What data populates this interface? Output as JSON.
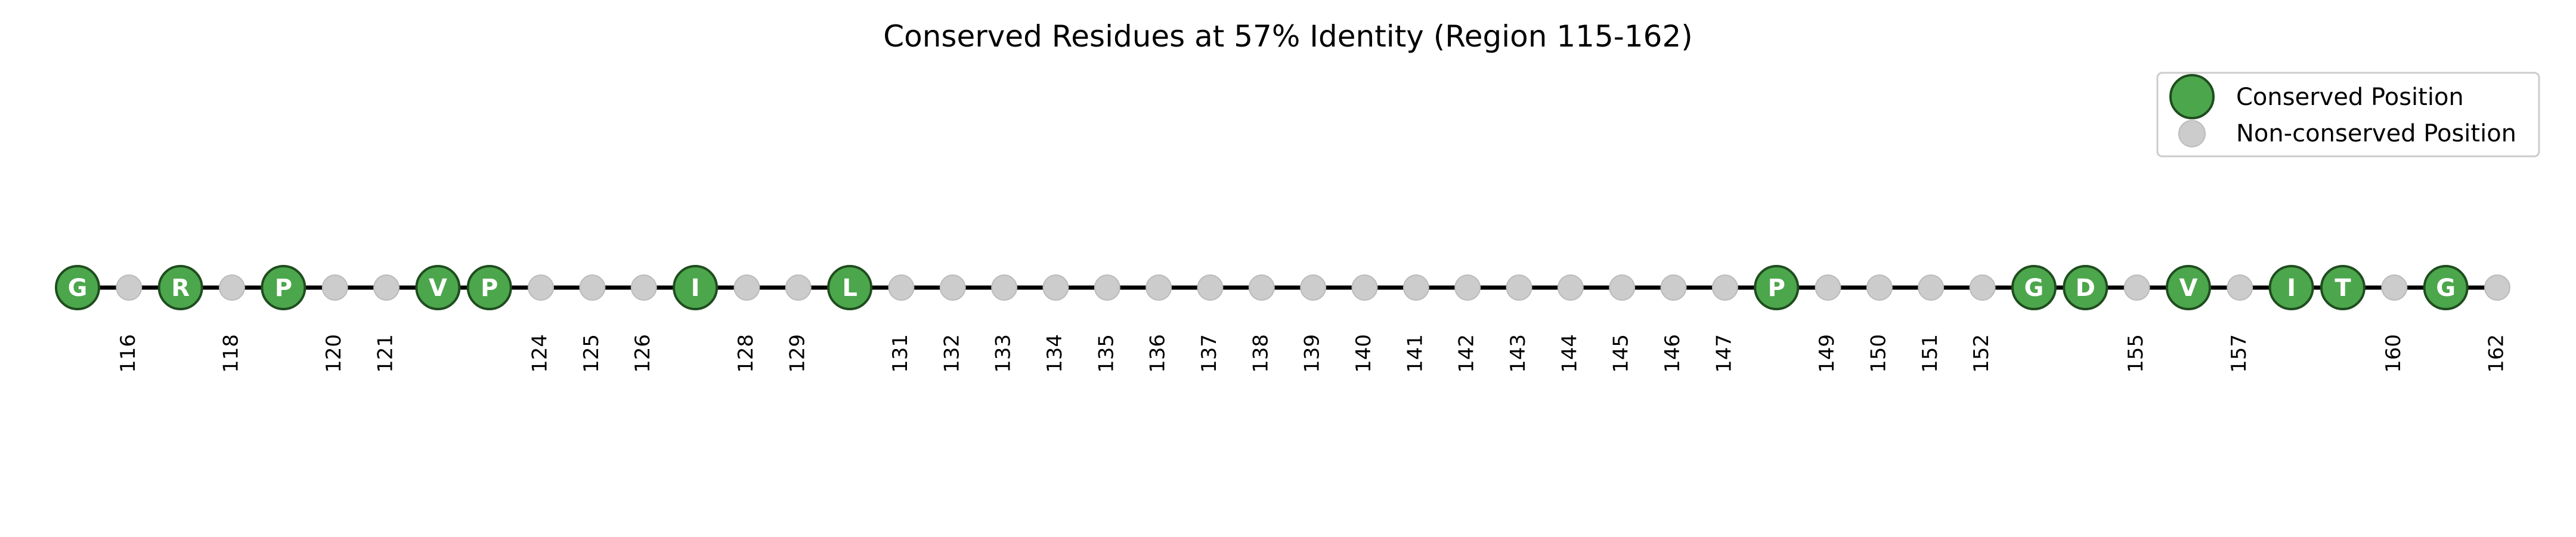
{
  "chart_data": {
    "type": "scatter",
    "title": "Conserved Residues at 57% Identity (Region 115-162)",
    "xlabel": "",
    "ylabel": "",
    "xlim": [
      115,
      162
    ],
    "grid": false,
    "legend_position": "top-right",
    "colors": {
      "conserved_fill": "#4ca64c",
      "conserved_edge": "#1f4d1f",
      "nonconserved_fill": "#cccccc",
      "baseline": "#000000"
    },
    "series": [
      {
        "name": "Conserved Position",
        "points": [
          {
            "x": 115,
            "label": "G"
          },
          {
            "x": 117,
            "label": "R"
          },
          {
            "x": 119,
            "label": "P"
          },
          {
            "x": 122,
            "label": "V"
          },
          {
            "x": 123,
            "label": "P"
          },
          {
            "x": 127,
            "label": "I"
          },
          {
            "x": 130,
            "label": "L"
          },
          {
            "x": 148,
            "label": "P"
          },
          {
            "x": 153,
            "label": "G"
          },
          {
            "x": 154,
            "label": "D"
          },
          {
            "x": 156,
            "label": "V"
          },
          {
            "x": 158,
            "label": "I"
          },
          {
            "x": 159,
            "label": "T"
          },
          {
            "x": 161,
            "label": "G"
          }
        ]
      },
      {
        "name": "Non-conserved Position",
        "x": [
          116,
          118,
          120,
          121,
          124,
          125,
          126,
          128,
          129,
          131,
          132,
          133,
          134,
          135,
          136,
          137,
          138,
          139,
          140,
          141,
          142,
          143,
          144,
          145,
          146,
          147,
          149,
          150,
          151,
          152,
          155,
          157,
          160,
          162
        ]
      }
    ]
  }
}
